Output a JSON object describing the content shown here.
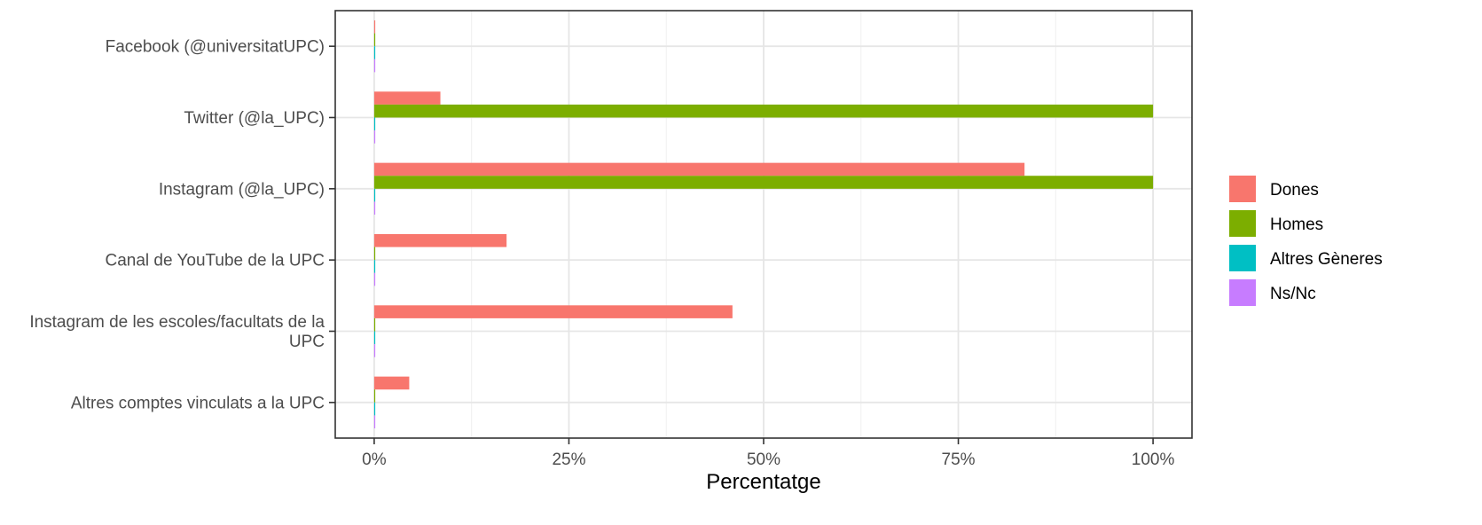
{
  "chart_data": {
    "type": "bar",
    "orientation": "horizontal",
    "title": "",
    "xlabel": "Percentatge",
    "ylabel": "",
    "xlim": [
      -5,
      105
    ],
    "x_ticks": [
      0,
      25,
      50,
      75,
      100
    ],
    "x_tick_labels": [
      "0%",
      "25%",
      "50%",
      "75%",
      "100%"
    ],
    "grid": true,
    "legend_position": "right",
    "categories": [
      [
        "Facebook (@universitatUPC)"
      ],
      [
        "Twitter (@la_UPC)"
      ],
      [
        "Instagram (@la_UPC)"
      ],
      [
        "Canal de YouTube de la UPC"
      ],
      [
        "Instagram de les escoles/facultats de la",
        "UPC"
      ],
      [
        "Altres comptes vinculats a la UPC"
      ]
    ],
    "series": [
      {
        "name": "Dones",
        "color": "#F8766D",
        "values": [
          0,
          8.5,
          83.5,
          17,
          46,
          4.5
        ]
      },
      {
        "name": "Homes",
        "color": "#7CAE00",
        "values": [
          0,
          100,
          100,
          0,
          0,
          0
        ]
      },
      {
        "name": "Altres Gèneres",
        "color": "#00BFC4",
        "values": [
          0,
          0,
          0,
          0,
          0,
          0
        ]
      },
      {
        "name": "Ns/Nc",
        "color": "#C77CFF",
        "values": [
          0,
          0,
          0,
          0,
          0,
          0
        ]
      }
    ]
  }
}
